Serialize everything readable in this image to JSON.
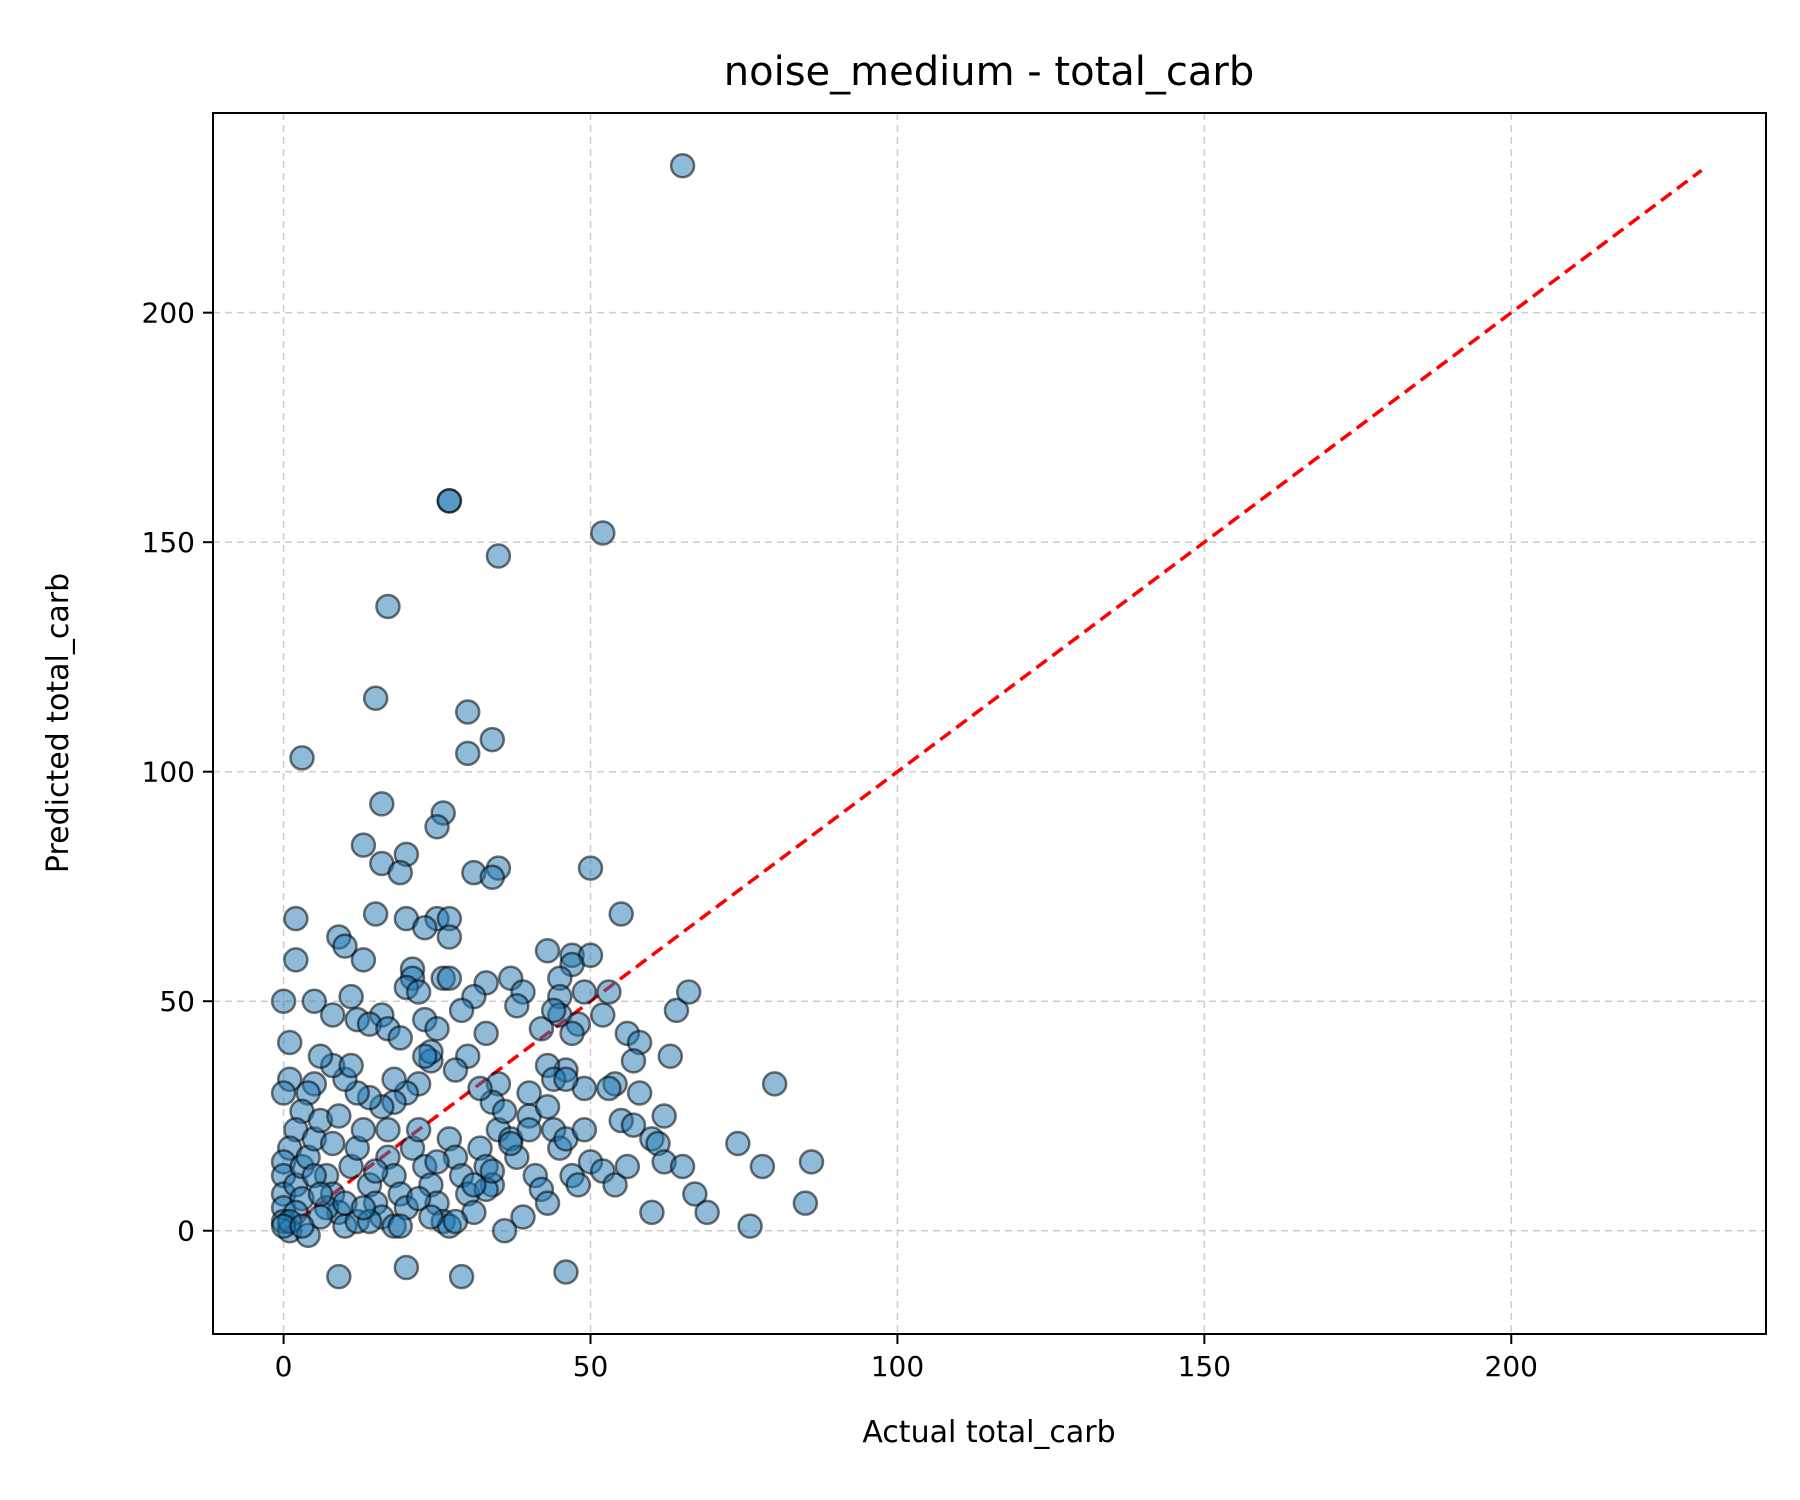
{
  "chart_data": {
    "type": "scatter",
    "title": "noise_medium - total_carb",
    "xlabel": "Actual total_carb",
    "ylabel": "Predicted total_carb",
    "xlim": [
      -11.5,
      241.5
    ],
    "ylim": [
      -22.5,
      243.5
    ],
    "xticks": [
      0,
      50,
      100,
      150,
      200
    ],
    "yticks": [
      0,
      50,
      100,
      150,
      200
    ],
    "grid": true,
    "colors": {
      "point_fill": "#1f77b4",
      "point_edge": "#000000",
      "reference_line": "#ff0000",
      "grid": "#cccccc"
    },
    "reference_line": {
      "x": [
        0,
        231
      ],
      "y": [
        0,
        231
      ],
      "style": "dashed"
    },
    "series": [
      {
        "points": [
          [
            65,
            232
          ],
          [
            27,
            159
          ],
          [
            27,
            159
          ],
          [
            52,
            152
          ],
          [
            35,
            147
          ],
          [
            17,
            136
          ],
          [
            15,
            116
          ],
          [
            30,
            113
          ],
          [
            34,
            107
          ],
          [
            30,
            104
          ],
          [
            3,
            103
          ],
          [
            16,
            93
          ],
          [
            26,
            91
          ],
          [
            25,
            88
          ],
          [
            13,
            84
          ],
          [
            20,
            82
          ],
          [
            16,
            80
          ],
          [
            19,
            78
          ],
          [
            35,
            79
          ],
          [
            31,
            78
          ],
          [
            34,
            77
          ],
          [
            50,
            79
          ],
          [
            55,
            69
          ],
          [
            15,
            69
          ],
          [
            2,
            68
          ],
          [
            20,
            68
          ],
          [
            25,
            68
          ],
          [
            27,
            68
          ],
          [
            23,
            66
          ],
          [
            27,
            64
          ],
          [
            9,
            64
          ],
          [
            10,
            62
          ],
          [
            2,
            59
          ],
          [
            13,
            59
          ],
          [
            21,
            57
          ],
          [
            21,
            55
          ],
          [
            26,
            55
          ],
          [
            27,
            55
          ],
          [
            20,
            53
          ],
          [
            22,
            52
          ],
          [
            33,
            54
          ],
          [
            37,
            55
          ],
          [
            39,
            52
          ],
          [
            43,
            61
          ],
          [
            47,
            60
          ],
          [
            50,
            60
          ],
          [
            47,
            58
          ],
          [
            45,
            55
          ],
          [
            49,
            52
          ],
          [
            45,
            51
          ],
          [
            31,
            51
          ],
          [
            0,
            50
          ],
          [
            5,
            50
          ],
          [
            11,
            51
          ],
          [
            8,
            47
          ],
          [
            12,
            46
          ],
          [
            16,
            47
          ],
          [
            14,
            45
          ],
          [
            23,
            46
          ],
          [
            17,
            44
          ],
          [
            19,
            42
          ],
          [
            25,
            44
          ],
          [
            29,
            48
          ],
          [
            33,
            43
          ],
          [
            38,
            49
          ],
          [
            42,
            44
          ],
          [
            45,
            47
          ],
          [
            48,
            45
          ],
          [
            47,
            43
          ],
          [
            44,
            48
          ],
          [
            52,
            47
          ],
          [
            53,
            52
          ],
          [
            64,
            48
          ],
          [
            66,
            52
          ],
          [
            56,
            43
          ],
          [
            58,
            41
          ],
          [
            57,
            37
          ],
          [
            63,
            38
          ],
          [
            58,
            30
          ],
          [
            54,
            32
          ],
          [
            49,
            31
          ],
          [
            46,
            35
          ],
          [
            43,
            36
          ],
          [
            44,
            33
          ],
          [
            40,
            30
          ],
          [
            35,
            32
          ],
          [
            34,
            28
          ],
          [
            32,
            31
          ],
          [
            30,
            38
          ],
          [
            28,
            35
          ],
          [
            24,
            37
          ],
          [
            24,
            39
          ],
          [
            22,
            32
          ],
          [
            20,
            30
          ],
          [
            18,
            28
          ],
          [
            16,
            27
          ],
          [
            14,
            29
          ],
          [
            12,
            30
          ],
          [
            10,
            33
          ],
          [
            8,
            36
          ],
          [
            6,
            38
          ],
          [
            5,
            32
          ],
          [
            4,
            30
          ],
          [
            3,
            26
          ],
          [
            2,
            22
          ],
          [
            1,
            41
          ],
          [
            1,
            33
          ],
          [
            0,
            30
          ],
          [
            1,
            18
          ],
          [
            0,
            15
          ],
          [
            0,
            12
          ],
          [
            0,
            8
          ],
          [
            0,
            5
          ],
          [
            0,
            2
          ],
          [
            1,
            0
          ],
          [
            2,
            10
          ],
          [
            3,
            14
          ],
          [
            4,
            16
          ],
          [
            5,
            20
          ],
          [
            6,
            24
          ],
          [
            7,
            12
          ],
          [
            8,
            8
          ],
          [
            9,
            4
          ],
          [
            10,
            1
          ],
          [
            11,
            14
          ],
          [
            12,
            18
          ],
          [
            13,
            22
          ],
          [
            14,
            10
          ],
          [
            15,
            6
          ],
          [
            16,
            3
          ],
          [
            17,
            16
          ],
          [
            18,
            12
          ],
          [
            19,
            8
          ],
          [
            20,
            5
          ],
          [
            21,
            18
          ],
          [
            22,
            22
          ],
          [
            23,
            14
          ],
          [
            24,
            10
          ],
          [
            25,
            6
          ],
          [
            26,
            2
          ],
          [
            27,
            20
          ],
          [
            28,
            16
          ],
          [
            29,
            12
          ],
          [
            30,
            8
          ],
          [
            31,
            4
          ],
          [
            32,
            18
          ],
          [
            33,
            14
          ],
          [
            34,
            10
          ],
          [
            35,
            22
          ],
          [
            36,
            26
          ],
          [
            37,
            20
          ],
          [
            38,
            16
          ],
          [
            39,
            3
          ],
          [
            40,
            25
          ],
          [
            41,
            12
          ],
          [
            42,
            9
          ],
          [
            43,
            6
          ],
          [
            44,
            22
          ],
          [
            45,
            18
          ],
          [
            46,
            20
          ],
          [
            47,
            12
          ],
          [
            48,
            10
          ],
          [
            49,
            22
          ],
          [
            50,
            15
          ],
          [
            52,
            13
          ],
          [
            53,
            31
          ],
          [
            54,
            10
          ],
          [
            55,
            24
          ],
          [
            56,
            14
          ],
          [
            57,
            23
          ],
          [
            60,
            20
          ],
          [
            61,
            19
          ],
          [
            62,
            25
          ],
          [
            62,
            15
          ],
          [
            65,
            14
          ],
          [
            60,
            4
          ],
          [
            67,
            8
          ],
          [
            69,
            4
          ],
          [
            74,
            19
          ],
          [
            76,
            1
          ],
          [
            78,
            14
          ],
          [
            80,
            32
          ],
          [
            85,
            6
          ],
          [
            86,
            15
          ],
          [
            9,
            -10
          ],
          [
            20,
            -8
          ],
          [
            29,
            -10
          ],
          [
            46,
            -9
          ],
          [
            36,
            0
          ],
          [
            4,
            -1
          ],
          [
            18,
            1
          ],
          [
            27,
            1
          ],
          [
            12,
            2
          ],
          [
            7,
            5
          ],
          [
            22,
            7
          ],
          [
            33,
            9
          ],
          [
            15,
            13
          ],
          [
            25,
            15
          ],
          [
            3,
            7
          ],
          [
            6,
            3
          ],
          [
            10,
            6
          ],
          [
            14,
            2
          ],
          [
            19,
            1
          ],
          [
            24,
            3
          ],
          [
            28,
            2
          ],
          [
            31,
            10
          ],
          [
            34,
            13
          ],
          [
            37,
            19
          ],
          [
            40,
            22
          ],
          [
            43,
            27
          ],
          [
            46,
            33
          ],
          [
            23,
            38
          ],
          [
            18,
            33
          ],
          [
            11,
            36
          ],
          [
            9,
            25
          ],
          [
            13,
            5
          ],
          [
            5,
            12
          ],
          [
            8,
            19
          ],
          [
            2,
            4
          ],
          [
            1,
            2
          ],
          [
            0,
            1
          ],
          [
            3,
            1
          ],
          [
            6,
            8
          ],
          [
            17,
            22
          ]
        ]
      }
    ]
  }
}
